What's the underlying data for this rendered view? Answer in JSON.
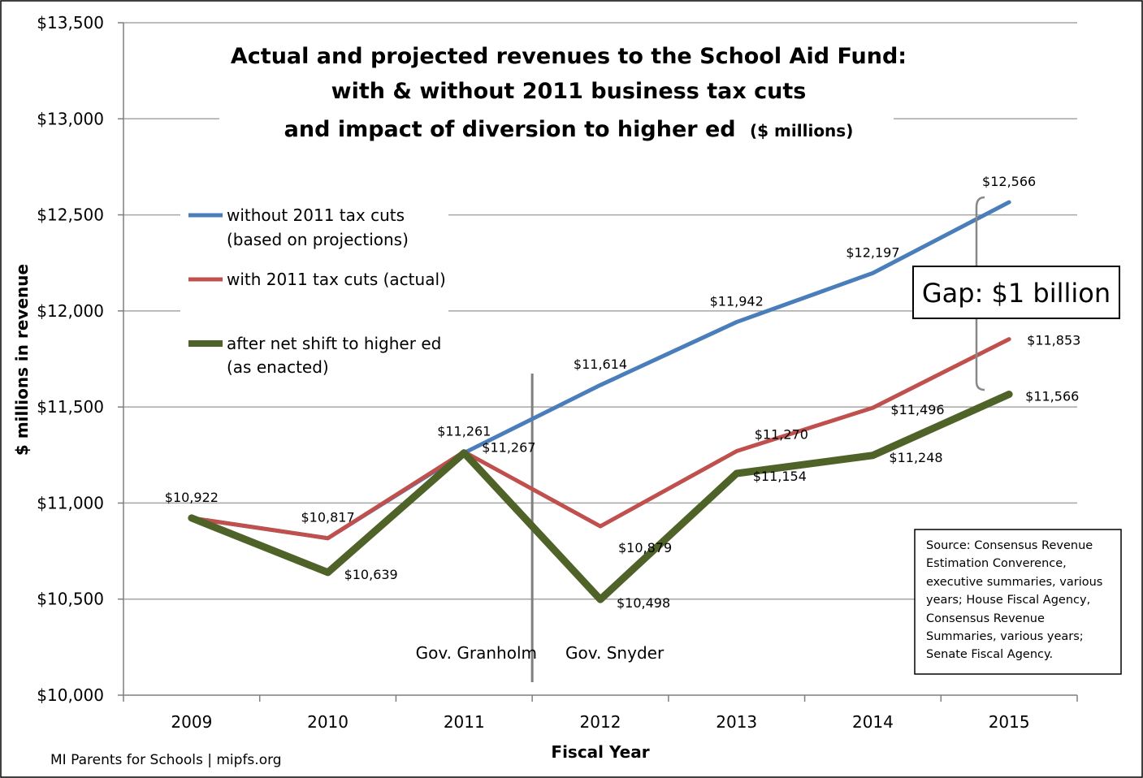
{
  "chart_data": {
    "type": "line",
    "title_lines": [
      "Actual and projected revenues to the School Aid Fund:",
      "with & without 2011 business tax cuts",
      "and impact of diversion to higher ed"
    ],
    "title_suffix": "($ millions)",
    "xlabel": "Fiscal Year",
    "ylabel": "$ millions in revenue",
    "categories": [
      "2009",
      "2010",
      "2011",
      "2012",
      "2013",
      "2014",
      "2015"
    ],
    "ylim": [
      10000,
      13500
    ],
    "yticks": [
      10000,
      10500,
      11000,
      11500,
      12000,
      12500,
      13000,
      13500
    ],
    "ytick_labels": [
      "$10,000",
      "$10,500",
      "$11,000",
      "$11,500",
      "$12,000",
      "$12,500",
      "$13,000",
      "$13,500"
    ],
    "grid": true,
    "legend_position": "left",
    "series": [
      {
        "name": "without 2011 tax cuts",
        "name_line2": "(based on projections)",
        "color": "#4a7ebb",
        "values": [
          10922,
          10817,
          11261,
          11614,
          11942,
          12197,
          12566
        ],
        "labels": [
          null,
          null,
          null,
          "$11,614",
          "$11,942",
          "$12,197",
          "$12,566"
        ]
      },
      {
        "name": "with 2011 tax cuts (actual)",
        "name_line2": "",
        "color": "#c0504d",
        "values": [
          10922,
          10817,
          11267,
          10879,
          11270,
          11496,
          11853
        ],
        "labels": [
          null,
          "$10,817",
          "$11,267",
          "$10,879",
          "$11,270",
          "$11,496",
          "$11,853"
        ]
      },
      {
        "name": "after net shift to higher ed",
        "name_line2": "(as enacted)",
        "color": "#4f6228",
        "values": [
          10922,
          10639,
          11261,
          10498,
          11154,
          11248,
          11566
        ],
        "labels": [
          "$10,922",
          "$10,639",
          "$11,261",
          "$10,498",
          "$11,154",
          "$11,248",
          "$11,566"
        ]
      }
    ],
    "annotations": {
      "gov_left": "Gov. Granholm",
      "gov_right": "Gov. Snyder",
      "gap": "Gap: $1 billion",
      "source_lines": [
        "Source: Consensus Revenue",
        "Estimation Converence,",
        "executive summaries, various",
        "years; House Fiscal Agency,",
        "Consensus Revenue",
        "Summaries, various years;",
        "Senate Fiscal Agency."
      ],
      "credit": "MI Parents for Schools | mipfs.org"
    }
  }
}
